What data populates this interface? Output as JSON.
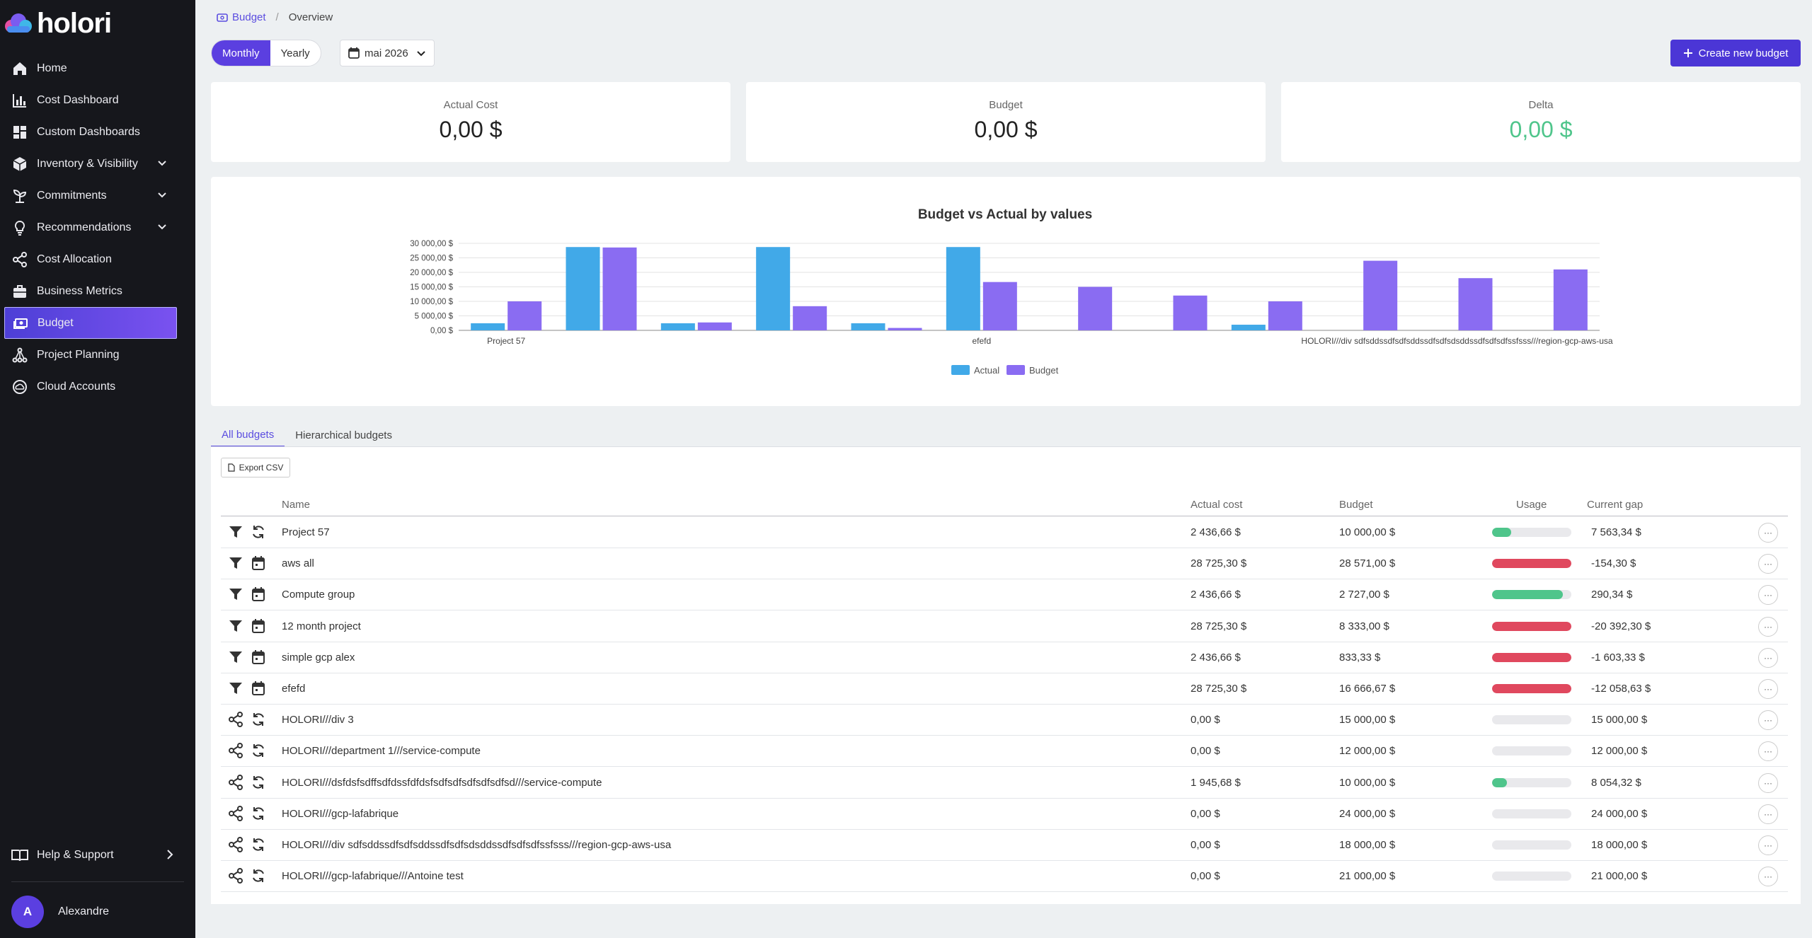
{
  "app": {
    "name": "holori"
  },
  "sidebar": {
    "items": [
      {
        "label": "Home",
        "icon": "home-icon",
        "expandable": false,
        "active": false
      },
      {
        "label": "Cost Dashboard",
        "icon": "bar-chart-icon",
        "expandable": false,
        "active": false
      },
      {
        "label": "Custom Dashboards",
        "icon": "dashboard-grid-icon",
        "expandable": false,
        "active": false
      },
      {
        "label": "Inventory & Visibility",
        "icon": "cube-icon",
        "expandable": true,
        "active": false
      },
      {
        "label": "Commitments",
        "icon": "seedling-icon",
        "expandable": true,
        "active": false
      },
      {
        "label": "Recommendations",
        "icon": "lightbulb-icon",
        "expandable": true,
        "active": false
      },
      {
        "label": "Cost Allocation",
        "icon": "share-icon",
        "expandable": false,
        "active": false
      },
      {
        "label": "Business Metrics",
        "icon": "briefcase-icon",
        "expandable": false,
        "active": false
      },
      {
        "label": "Budget",
        "icon": "money-icon",
        "expandable": false,
        "active": true
      },
      {
        "label": "Project Planning",
        "icon": "network-icon",
        "expandable": false,
        "active": false
      },
      {
        "label": "Cloud Accounts",
        "icon": "cloud-circle-icon",
        "expandable": false,
        "active": false
      }
    ],
    "help_label": "Help & Support",
    "user": {
      "initial": "A",
      "name": "Alexandre"
    }
  },
  "breadcrumb": {
    "parent": "Budget",
    "current": "Overview"
  },
  "period_toggle": {
    "monthly": "Monthly",
    "yearly": "Yearly"
  },
  "month_picker": {
    "value": "mai 2026"
  },
  "create_button": "Create new budget",
  "stats": {
    "actual": {
      "label": "Actual Cost",
      "value": "0,00 $"
    },
    "budget": {
      "label": "Budget",
      "value": "0,00 $"
    },
    "delta": {
      "label": "Delta",
      "value": "0,00 $"
    }
  },
  "chart_data": {
    "type": "bar",
    "title": "Budget vs Actual by values",
    "categories": [
      "Project 57",
      "aws all",
      "Compute group",
      "12 month project",
      "simple gcp alex",
      "efefd",
      "HOLORI///div 3",
      "HOLORI///department 1///service-compute",
      "HOLORI///dsfdsfsdffsdfdssfdfdsfsdfsdfsdfsdfsdfsd///service-compute",
      "HOLORI///gcp-lafabrique",
      "HOLORI///div sdfsddssdfsdfsddssdfsdfsdsddssdfsdfsdfssfsss///region-gcp-aws-usa",
      "HOLORI///gcp-lafabrique///Antoine test"
    ],
    "visible_tick_labels": [
      "Project 57",
      "efefd",
      "HOLORI///div sdfsddssdfsdfsddssdfsdfsdsddssdfsdfsdfssfsss///region-gcp-aws-usa"
    ],
    "series": [
      {
        "name": "Actual",
        "color": "#41a9e8",
        "values": [
          2436.66,
          28725.3,
          2436.66,
          28725.3,
          2436.66,
          28725.3,
          0,
          0,
          1945.68,
          0,
          0,
          0
        ]
      },
      {
        "name": "Budget",
        "color": "#8a6cf2",
        "values": [
          10000,
          28571,
          2727,
          8333,
          833.33,
          16666.67,
          15000,
          12000,
          10000,
          24000,
          18000,
          21000
        ]
      }
    ],
    "yticks": [
      "0,00 $",
      "5 000,00 $",
      "10 000,00 $",
      "15 000,00 $",
      "20 000,00 $",
      "25 000,00 $",
      "30 000,00 $"
    ],
    "ylim": [
      0,
      30000
    ],
    "legend_position": "bottom",
    "grid": true
  },
  "tabs": [
    {
      "label": "All budgets",
      "active": true
    },
    {
      "label": "Hierarchical budgets",
      "active": false
    }
  ],
  "export_label": "Export CSV",
  "table": {
    "headers": {
      "name": "Name",
      "actual": "Actual cost",
      "budget": "Budget",
      "usage": "Usage",
      "gap": "Current gap"
    },
    "rows": [
      {
        "icon1": "filter-icon",
        "icon2": "refresh-icon",
        "name": "Project 57",
        "actual": "2 436,66 $",
        "budget": "10 000,00 $",
        "usage": 0.24,
        "status": "ok",
        "gap": "7 563,34 $"
      },
      {
        "icon1": "filter-icon",
        "icon2": "calendar-icon",
        "name": "aws all",
        "actual": "28 725,30 $",
        "budget": "28 571,00 $",
        "usage": 1.0,
        "status": "over",
        "gap": "-154,30 $"
      },
      {
        "icon1": "filter-icon",
        "icon2": "calendar-icon",
        "name": "Compute group",
        "actual": "2 436,66 $",
        "budget": "2 727,00 $",
        "usage": 0.89,
        "status": "ok",
        "gap": "290,34 $"
      },
      {
        "icon1": "filter-icon",
        "icon2": "calendar-icon",
        "name": "12 month project",
        "actual": "28 725,30 $",
        "budget": "8 333,00 $",
        "usage": 1.0,
        "status": "over",
        "gap": "-20 392,30 $"
      },
      {
        "icon1": "filter-icon",
        "icon2": "calendar-icon",
        "name": "simple gcp alex",
        "actual": "2 436,66 $",
        "budget": "833,33 $",
        "usage": 1.0,
        "status": "over",
        "gap": "-1 603,33 $"
      },
      {
        "icon1": "filter-icon",
        "icon2": "calendar-icon",
        "name": "efefd",
        "actual": "28 725,30 $",
        "budget": "16 666,67 $",
        "usage": 1.0,
        "status": "over",
        "gap": "-12 058,63 $"
      },
      {
        "icon1": "share-icon",
        "icon2": "refresh-icon",
        "name": "HOLORI///div 3",
        "actual": "0,00 $",
        "budget": "15 000,00 $",
        "usage": 0,
        "status": "ok",
        "gap": "15 000,00 $"
      },
      {
        "icon1": "share-icon",
        "icon2": "refresh-icon",
        "name": "HOLORI///department 1///service-compute",
        "actual": "0,00 $",
        "budget": "12 000,00 $",
        "usage": 0,
        "status": "ok",
        "gap": "12 000,00 $"
      },
      {
        "icon1": "share-icon",
        "icon2": "refresh-icon",
        "name": "HOLORI///dsfdsfsdffsdfdssfdfdsfsdfsdfsdfsdfsdfsd///service-compute",
        "actual": "1 945,68 $",
        "budget": "10 000,00 $",
        "usage": 0.19,
        "status": "ok",
        "gap": "8 054,32 $"
      },
      {
        "icon1": "share-icon",
        "icon2": "refresh-icon",
        "name": "HOLORI///gcp-lafabrique",
        "actual": "0,00 $",
        "budget": "24 000,00 $",
        "usage": 0,
        "status": "ok",
        "gap": "24 000,00 $"
      },
      {
        "icon1": "share-icon",
        "icon2": "refresh-icon",
        "name": "HOLORI///div sdfsddssdfsdfsddssdfsdfsdsddssdfsdfsdfssfsss///region-gcp-aws-usa",
        "actual": "0,00 $",
        "budget": "18 000,00 $",
        "usage": 0,
        "status": "ok",
        "gap": "18 000,00 $"
      },
      {
        "icon1": "share-icon",
        "icon2": "refresh-icon",
        "name": "HOLORI///gcp-lafabrique///Antoine test",
        "actual": "0,00 $",
        "budget": "21 000,00 $",
        "usage": 0,
        "status": "ok",
        "gap": "21 000,00 $"
      }
    ]
  },
  "colors": {
    "accent": "#5b3fe0",
    "ok": "#4fc58b",
    "over": "#e0485e",
    "actual": "#41a9e8",
    "budget": "#8a6cf2"
  }
}
